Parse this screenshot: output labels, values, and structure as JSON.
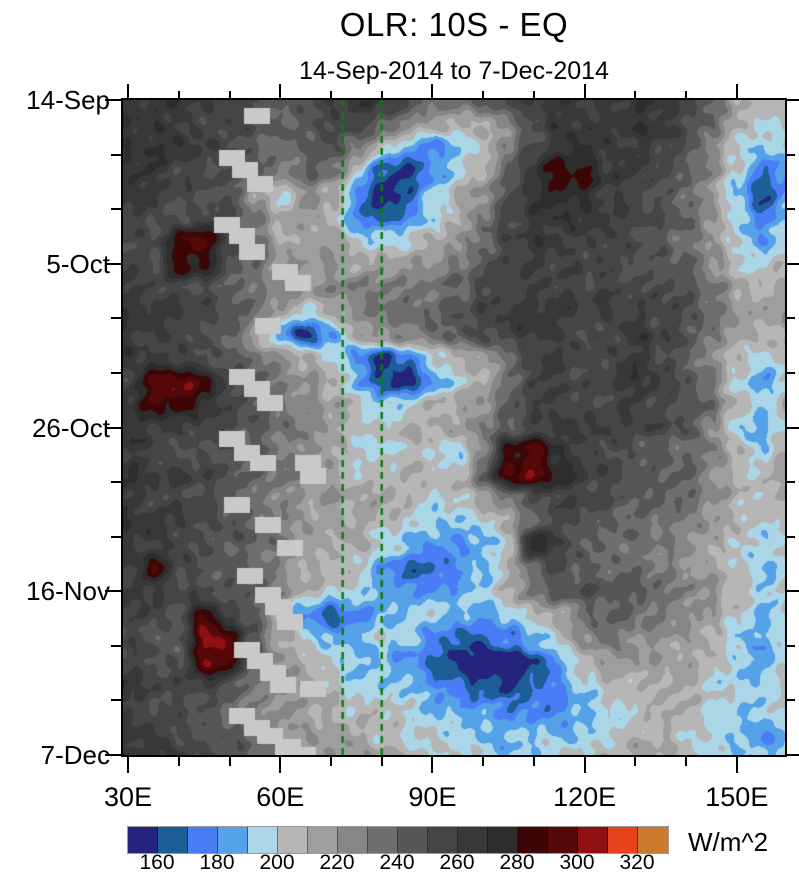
{
  "header": {
    "title": "OLR: 10S - EQ",
    "subtitle": "14-Sep-2014 to 7-Dec-2014"
  },
  "axes": {
    "x": {
      "tick_labels": [
        "30E",
        "60E",
        "90E",
        "120E",
        "150E"
      ],
      "tick_lons": [
        30,
        60,
        90,
        120,
        150
      ],
      "minor_lons": [
        40,
        50,
        70,
        80,
        100,
        110,
        130,
        140
      ],
      "range_lons": [
        29,
        159.5
      ]
    },
    "y": {
      "tick_labels": [
        "14-Sep",
        "5-Oct",
        "26-Oct",
        "16-Nov",
        "7-Dec"
      ],
      "tick_days": [
        0,
        21,
        42,
        63,
        84
      ],
      "minor_days": [
        7,
        14,
        28,
        35,
        49,
        56,
        70,
        77
      ],
      "range_days": [
        0,
        84
      ]
    }
  },
  "colorbar": {
    "units": "W/m^2",
    "tick_labels": [
      "160",
      "180",
      "200",
      "220",
      "240",
      "260",
      "280",
      "300",
      "320"
    ],
    "level_min": 150,
    "level_step": 10,
    "colors": [
      "#24247e",
      "#1c5f96",
      "#4a7df5",
      "#55a2e8",
      "#aad6e8",
      "#b6b6b6",
      "#9e9e9e",
      "#868686",
      "#6e6e6e",
      "#565656",
      "#454545",
      "#383838",
      "#2d2d2d",
      "#3d0606",
      "#540808",
      "#8e1010",
      "#e8421c",
      "#cc7a2e"
    ]
  },
  "chart_data": {
    "type": "heatmap",
    "title": "OLR: 10S - EQ",
    "subtitle": "14-Sep-2014 to 7-Dec-2014",
    "units": "W/m^2",
    "legend_position": "bottom",
    "x_lons": [
      30,
      35,
      40,
      45,
      50,
      55,
      60,
      65,
      70,
      75,
      80,
      85,
      90,
      95,
      100,
      105,
      110,
      115,
      120,
      125,
      130,
      135,
      140,
      145,
      150,
      155,
      160
    ],
    "y_dates": [
      "14-Sep",
      "17-Sep",
      "20-Sep",
      "23-Sep",
      "26-Sep",
      "29-Sep",
      "2-Oct",
      "5-Oct",
      "8-Oct",
      "11-Oct",
      "14-Oct",
      "17-Oct",
      "20-Oct",
      "23-Oct",
      "26-Oct",
      "29-Oct",
      "1-Nov",
      "4-Nov",
      "7-Nov",
      "10-Nov",
      "13-Nov",
      "16-Nov",
      "19-Nov",
      "22-Nov",
      "25-Nov",
      "28-Nov",
      "1-Dec",
      "4-Dec",
      "7-Dec"
    ],
    "values_wm2": [
      [
        265,
        268,
        264,
        258,
        262,
        252,
        238,
        252,
        262,
        268,
        258,
        248,
        238,
        230,
        240,
        258,
        268,
        264,
        260,
        264,
        268,
        264,
        254,
        244,
        216,
        200,
        206
      ],
      [
        268,
        264,
        258,
        254,
        258,
        248,
        238,
        248,
        258,
        254,
        244,
        228,
        214,
        205,
        210,
        226,
        250,
        264,
        264,
        268,
        268,
        264,
        254,
        240,
        210,
        196,
        206
      ],
      [
        264,
        268,
        264,
        258,
        254,
        244,
        234,
        244,
        254,
        234,
        205,
        186,
        176,
        186,
        200,
        230,
        254,
        264,
        268,
        264,
        264,
        258,
        248,
        230,
        200,
        190,
        200
      ],
      [
        268,
        264,
        258,
        254,
        250,
        240,
        230,
        240,
        234,
        200,
        170,
        160,
        176,
        196,
        214,
        240,
        264,
        288,
        282,
        264,
        258,
        254,
        244,
        224,
        196,
        176,
        186
      ],
      [
        264,
        258,
        254,
        250,
        244,
        216,
        200,
        224,
        214,
        180,
        155,
        166,
        190,
        210,
        224,
        244,
        264,
        280,
        274,
        258,
        254,
        250,
        240,
        216,
        186,
        162,
        182
      ],
      [
        258,
        254,
        250,
        254,
        250,
        230,
        210,
        214,
        205,
        176,
        165,
        176,
        196,
        214,
        234,
        254,
        264,
        268,
        264,
        258,
        254,
        250,
        240,
        220,
        196,
        176,
        190
      ],
      [
        254,
        250,
        292,
        298,
        250,
        234,
        214,
        210,
        214,
        200,
        196,
        200,
        210,
        224,
        240,
        254,
        264,
        264,
        258,
        254,
        250,
        244,
        234,
        216,
        196,
        186,
        196
      ],
      [
        258,
        254,
        285,
        278,
        250,
        240,
        220,
        214,
        220,
        214,
        210,
        214,
        224,
        234,
        244,
        258,
        264,
        258,
        254,
        254,
        250,
        244,
        240,
        224,
        205,
        196,
        206
      ],
      [
        264,
        258,
        254,
        250,
        244,
        234,
        224,
        220,
        224,
        230,
        224,
        230,
        234,
        240,
        250,
        258,
        264,
        258,
        254,
        258,
        254,
        250,
        244,
        234,
        214,
        205,
        214
      ],
      [
        268,
        264,
        258,
        254,
        250,
        240,
        214,
        200,
        214,
        224,
        230,
        234,
        240,
        244,
        254,
        264,
        268,
        264,
        258,
        264,
        258,
        254,
        250,
        240,
        220,
        210,
        220
      ],
      [
        264,
        258,
        254,
        250,
        244,
        210,
        180,
        160,
        186,
        210,
        224,
        230,
        234,
        240,
        250,
        258,
        264,
        258,
        254,
        258,
        264,
        258,
        250,
        234,
        214,
        205,
        214
      ],
      [
        264,
        258,
        254,
        250,
        244,
        234,
        224,
        214,
        205,
        180,
        160,
        176,
        196,
        205,
        214,
        234,
        254,
        258,
        254,
        258,
        264,
        254,
        244,
        224,
        205,
        196,
        210
      ],
      [
        258,
        292,
        300,
        288,
        250,
        240,
        230,
        220,
        210,
        186,
        166,
        156,
        180,
        200,
        214,
        234,
        254,
        258,
        254,
        258,
        264,
        258,
        250,
        230,
        196,
        186,
        200
      ],
      [
        264,
        285,
        290,
        274,
        250,
        244,
        234,
        224,
        214,
        205,
        196,
        200,
        205,
        214,
        224,
        240,
        254,
        258,
        254,
        254,
        258,
        254,
        250,
        234,
        205,
        196,
        210
      ],
      [
        268,
        264,
        258,
        254,
        250,
        244,
        234,
        224,
        214,
        205,
        200,
        210,
        214,
        220,
        230,
        244,
        258,
        264,
        258,
        254,
        258,
        254,
        244,
        224,
        196,
        186,
        200
      ],
      [
        264,
        258,
        254,
        250,
        244,
        240,
        230,
        220,
        210,
        200,
        196,
        205,
        200,
        196,
        230,
        285,
        294,
        270,
        254,
        250,
        244,
        240,
        234,
        228,
        208,
        196,
        212
      ],
      [
        268,
        264,
        258,
        254,
        250,
        244,
        234,
        224,
        214,
        205,
        200,
        205,
        210,
        205,
        240,
        294,
        300,
        280,
        258,
        254,
        250,
        244,
        240,
        224,
        210,
        200,
        214
      ],
      [
        264,
        258,
        254,
        250,
        244,
        234,
        224,
        214,
        220,
        214,
        210,
        205,
        200,
        205,
        214,
        234,
        254,
        258,
        254,
        250,
        244,
        240,
        234,
        224,
        210,
        200,
        210
      ],
      [
        268,
        264,
        258,
        254,
        250,
        240,
        230,
        220,
        214,
        210,
        205,
        200,
        190,
        185,
        196,
        214,
        240,
        254,
        250,
        244,
        240,
        234,
        230,
        220,
        205,
        196,
        205
      ],
      [
        264,
        258,
        254,
        250,
        244,
        240,
        230,
        220,
        214,
        210,
        200,
        190,
        180,
        175,
        186,
        205,
        285,
        254,
        244,
        240,
        234,
        230,
        224,
        214,
        200,
        190,
        205
      ],
      [
        258,
        284,
        254,
        250,
        244,
        234,
        224,
        214,
        210,
        200,
        186,
        170,
        165,
        176,
        190,
        210,
        234,
        250,
        244,
        240,
        234,
        230,
        224,
        214,
        200,
        190,
        200
      ],
      [
        264,
        258,
        254,
        250,
        244,
        240,
        224,
        210,
        200,
        196,
        190,
        186,
        180,
        186,
        196,
        210,
        230,
        244,
        250,
        244,
        240,
        234,
        230,
        220,
        205,
        196,
        205
      ],
      [
        258,
        254,
        250,
        294,
        250,
        240,
        205,
        176,
        160,
        176,
        190,
        196,
        196,
        190,
        186,
        190,
        200,
        214,
        234,
        240,
        234,
        230,
        224,
        214,
        200,
        190,
        200
      ],
      [
        254,
        250,
        244,
        300,
        294,
        244,
        214,
        196,
        186,
        190,
        196,
        190,
        180,
        170,
        165,
        176,
        190,
        205,
        220,
        230,
        224,
        220,
        214,
        210,
        196,
        186,
        196
      ],
      [
        258,
        254,
        250,
        298,
        290,
        240,
        220,
        205,
        196,
        190,
        186,
        180,
        170,
        160,
        150,
        146,
        160,
        186,
        205,
        214,
        220,
        214,
        210,
        205,
        196,
        186,
        196
      ],
      [
        264,
        258,
        254,
        258,
        250,
        234,
        224,
        214,
        205,
        196,
        190,
        186,
        180,
        170,
        160,
        156,
        170,
        180,
        196,
        205,
        210,
        214,
        210,
        200,
        196,
        190,
        200
      ],
      [
        258,
        254,
        250,
        244,
        240,
        230,
        220,
        214,
        210,
        205,
        200,
        196,
        190,
        186,
        180,
        176,
        180,
        176,
        186,
        196,
        205,
        210,
        205,
        200,
        196,
        190,
        200
      ],
      [
        264,
        258,
        254,
        250,
        244,
        234,
        224,
        220,
        214,
        210,
        205,
        200,
        196,
        190,
        190,
        186,
        190,
        186,
        196,
        200,
        205,
        210,
        205,
        196,
        186,
        180,
        190
      ],
      [
        268,
        264,
        258,
        254,
        250,
        240,
        230,
        224,
        220,
        214,
        210,
        205,
        200,
        196,
        196,
        190,
        196,
        200,
        205,
        210,
        214,
        210,
        205,
        196,
        190,
        186,
        196
      ]
    ],
    "reference_lines": {
      "lons": [
        72.3,
        80
      ],
      "color": "#0d7a12",
      "style": "dashed"
    },
    "track_squares": {
      "color": "#c9c9c9",
      "points": [
        {
          "day": 2,
          "lon": 55.5
        },
        {
          "day": 7.5,
          "lon": 50.5
        },
        {
          "day": 9,
          "lon": 53
        },
        {
          "day": 10.8,
          "lon": 56
        },
        {
          "day": 16,
          "lon": 49.5
        },
        {
          "day": 17.5,
          "lon": 52.5
        },
        {
          "day": 19.5,
          "lon": 54.5
        },
        {
          "day": 22,
          "lon": 61
        },
        {
          "day": 23.5,
          "lon": 63.5
        },
        {
          "day": 29,
          "lon": 57.5
        },
        {
          "day": 35.5,
          "lon": 52.5
        },
        {
          "day": 37,
          "lon": 55.5
        },
        {
          "day": 38.8,
          "lon": 58
        },
        {
          "day": 43.5,
          "lon": 50.5
        },
        {
          "day": 45.3,
          "lon": 53.5
        },
        {
          "day": 46.5,
          "lon": 56.5
        },
        {
          "day": 46.5,
          "lon": 65.5
        },
        {
          "day": 48.2,
          "lon": 66.5
        },
        {
          "day": 52,
          "lon": 51.5
        },
        {
          "day": 54.5,
          "lon": 57.5
        },
        {
          "day": 57.5,
          "lon": 62
        },
        {
          "day": 61,
          "lon": 54
        },
        {
          "day": 63.5,
          "lon": 57.5
        },
        {
          "day": 65,
          "lon": 59.5
        },
        {
          "day": 67,
          "lon": 62
        },
        {
          "day": 70.5,
          "lon": 53.5
        },
        {
          "day": 72,
          "lon": 56
        },
        {
          "day": 73.5,
          "lon": 58.5
        },
        {
          "day": 75,
          "lon": 60.5
        },
        {
          "day": 75.5,
          "lon": 66.5
        },
        {
          "day": 79,
          "lon": 52.5
        },
        {
          "day": 80.5,
          "lon": 55.5
        },
        {
          "day": 81.5,
          "lon": 58
        },
        {
          "day": 83,
          "lon": 61.5
        },
        {
          "day": 84,
          "lon": 64.5
        }
      ]
    }
  }
}
